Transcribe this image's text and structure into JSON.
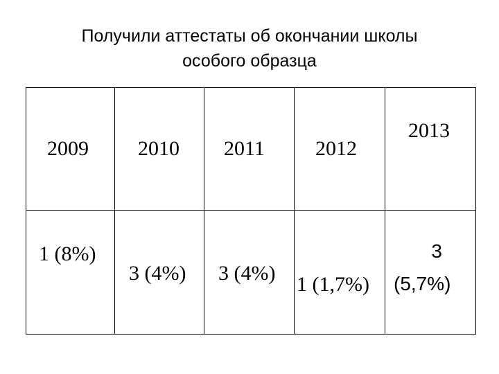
{
  "title": {
    "line1": "Получили аттестаты об окончании школы",
    "line2": "особого образца"
  },
  "table": {
    "years": [
      "2009",
      "2010",
      "2011",
      "2012",
      "2013"
    ],
    "values": [
      "1 (8%)",
      "3 (4%)",
      "3 (4%)",
      "1 (1,7%)"
    ],
    "value_2013_line1": "3",
    "value_2013_line2": "(5,7%)"
  }
}
